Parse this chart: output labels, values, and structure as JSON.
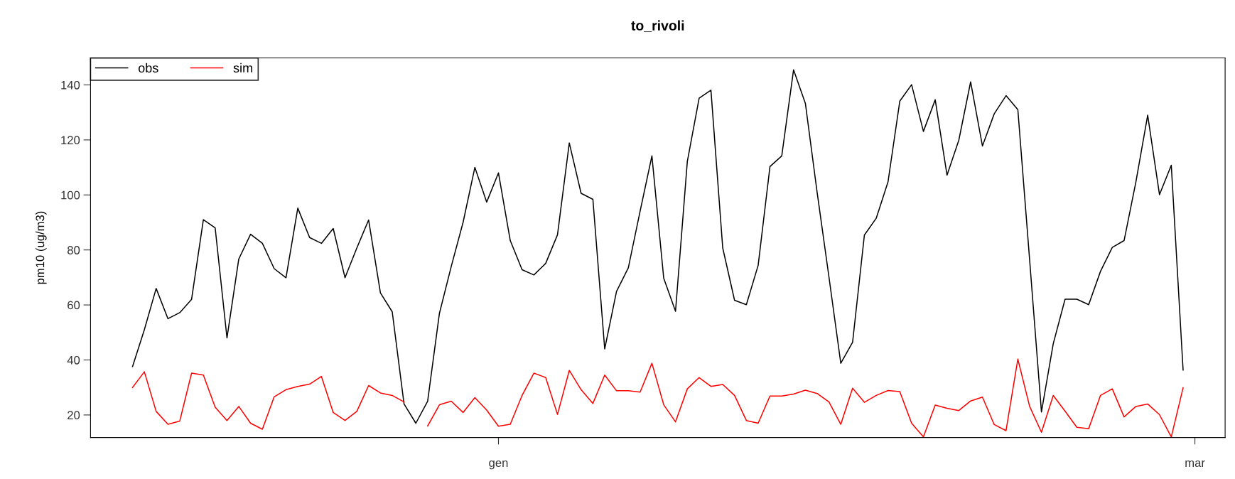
{
  "chart_data": {
    "type": "line",
    "title": "to_rivoli",
    "ylabel": "pm10 (ug/m3)",
    "categories": [
      null,
      null,
      null,
      null,
      null,
      null,
      null,
      null,
      null,
      null,
      null,
      null,
      null,
      null,
      null,
      null,
      null,
      null,
      null,
      null,
      null,
      null,
      null,
      null,
      null,
      null,
      null,
      null,
      null,
      null,
      null,
      "gen",
      null,
      null,
      null,
      null,
      null,
      null,
      null,
      null,
      null,
      null,
      null,
      null,
      null,
      null,
      null,
      null,
      null,
      null,
      null,
      null,
      null,
      null,
      null,
      null,
      null,
      null,
      null,
      null,
      null,
      null,
      null,
      null,
      null,
      null,
      null,
      null,
      null,
      null,
      null,
      null,
      null,
      null,
      null,
      null,
      null,
      null,
      null,
      null,
      null,
      null,
      null,
      null,
      null,
      null,
      null,
      null,
      null,
      null,
      "mar"
    ],
    "ylim": [
      11.8,
      149.8
    ],
    "yticks": [
      20,
      40,
      60,
      80,
      100,
      120,
      140
    ],
    "grid": false,
    "legend": "top left",
    "line_style": "solid",
    "marker": "none",
    "series": [
      {
        "name": "obs",
        "color": "#000000",
        "values": [
          37.6,
          51,
          66,
          55,
          57.2,
          62,
          91,
          88,
          48,
          76.7,
          85.7,
          82.4,
          73.2,
          69.9,
          95.2,
          84.5,
          82.4,
          87.8,
          69.9,
          80.7,
          90.9,
          64.4,
          57.5,
          24,
          17,
          25,
          57,
          74,
          90,
          110,
          97.4,
          108,
          83.4,
          72.8,
          70.9,
          75.1,
          85.5,
          118.9,
          100.6,
          98.4,
          44,
          64.9,
          73.5,
          94.1,
          114.2,
          69.7,
          57.7,
          112.2,
          135.2,
          138.1,
          80.7,
          61.7,
          60.1,
          74.4,
          110.3,
          114.2,
          145.5,
          133.3,
          100.8,
          70.1,
          38.8,
          46.4,
          85.4,
          91.5,
          104.7,
          134.1,
          140.1,
          123.1,
          134.6,
          107.2,
          119.9,
          141.1,
          117.8,
          129.5,
          136.1,
          131,
          76.3,
          21.1,
          45.9,
          62.1,
          62.1,
          60.1,
          72.2,
          80.9,
          83.4,
          104.7,
          129,
          100.1,
          110.8,
          36.3,
          null
        ]
      },
      {
        "name": "sim",
        "color": "#ff0000",
        "values": [
          30,
          35.7,
          21.3,
          16.6,
          17.8,
          35.2,
          34.5,
          22.8,
          18,
          23.1,
          17,
          14.8,
          26.6,
          29.2,
          30.4,
          31.2,
          34,
          20.9,
          18,
          21.3,
          30.7,
          28,
          27.1,
          24.7,
          null,
          16,
          23.7,
          25,
          20.9,
          26.3,
          21.8,
          15.9,
          16.6,
          27.1,
          35.2,
          33.6,
          20.2,
          36.2,
          29.2,
          24.2,
          34.5,
          28.8,
          28.8,
          28.3,
          38.8,
          23.7,
          17.5,
          29.5,
          33.6,
          30.4,
          31.1,
          27.1,
          18,
          17,
          26.9,
          26.9,
          27.6,
          29,
          27.8,
          24.7,
          16.6,
          29.7,
          24.6,
          27.1,
          28.9,
          28.5,
          17,
          12,
          23.6,
          22.4,
          21.6,
          25.1,
          26.5,
          16.5,
          14.3,
          40.3,
          23.1,
          13.7,
          27.1,
          21.4,
          15.5,
          15,
          27.1,
          29.5,
          19.3,
          23.1,
          24,
          20.1,
          12,
          29.9,
          null
        ]
      }
    ]
  }
}
